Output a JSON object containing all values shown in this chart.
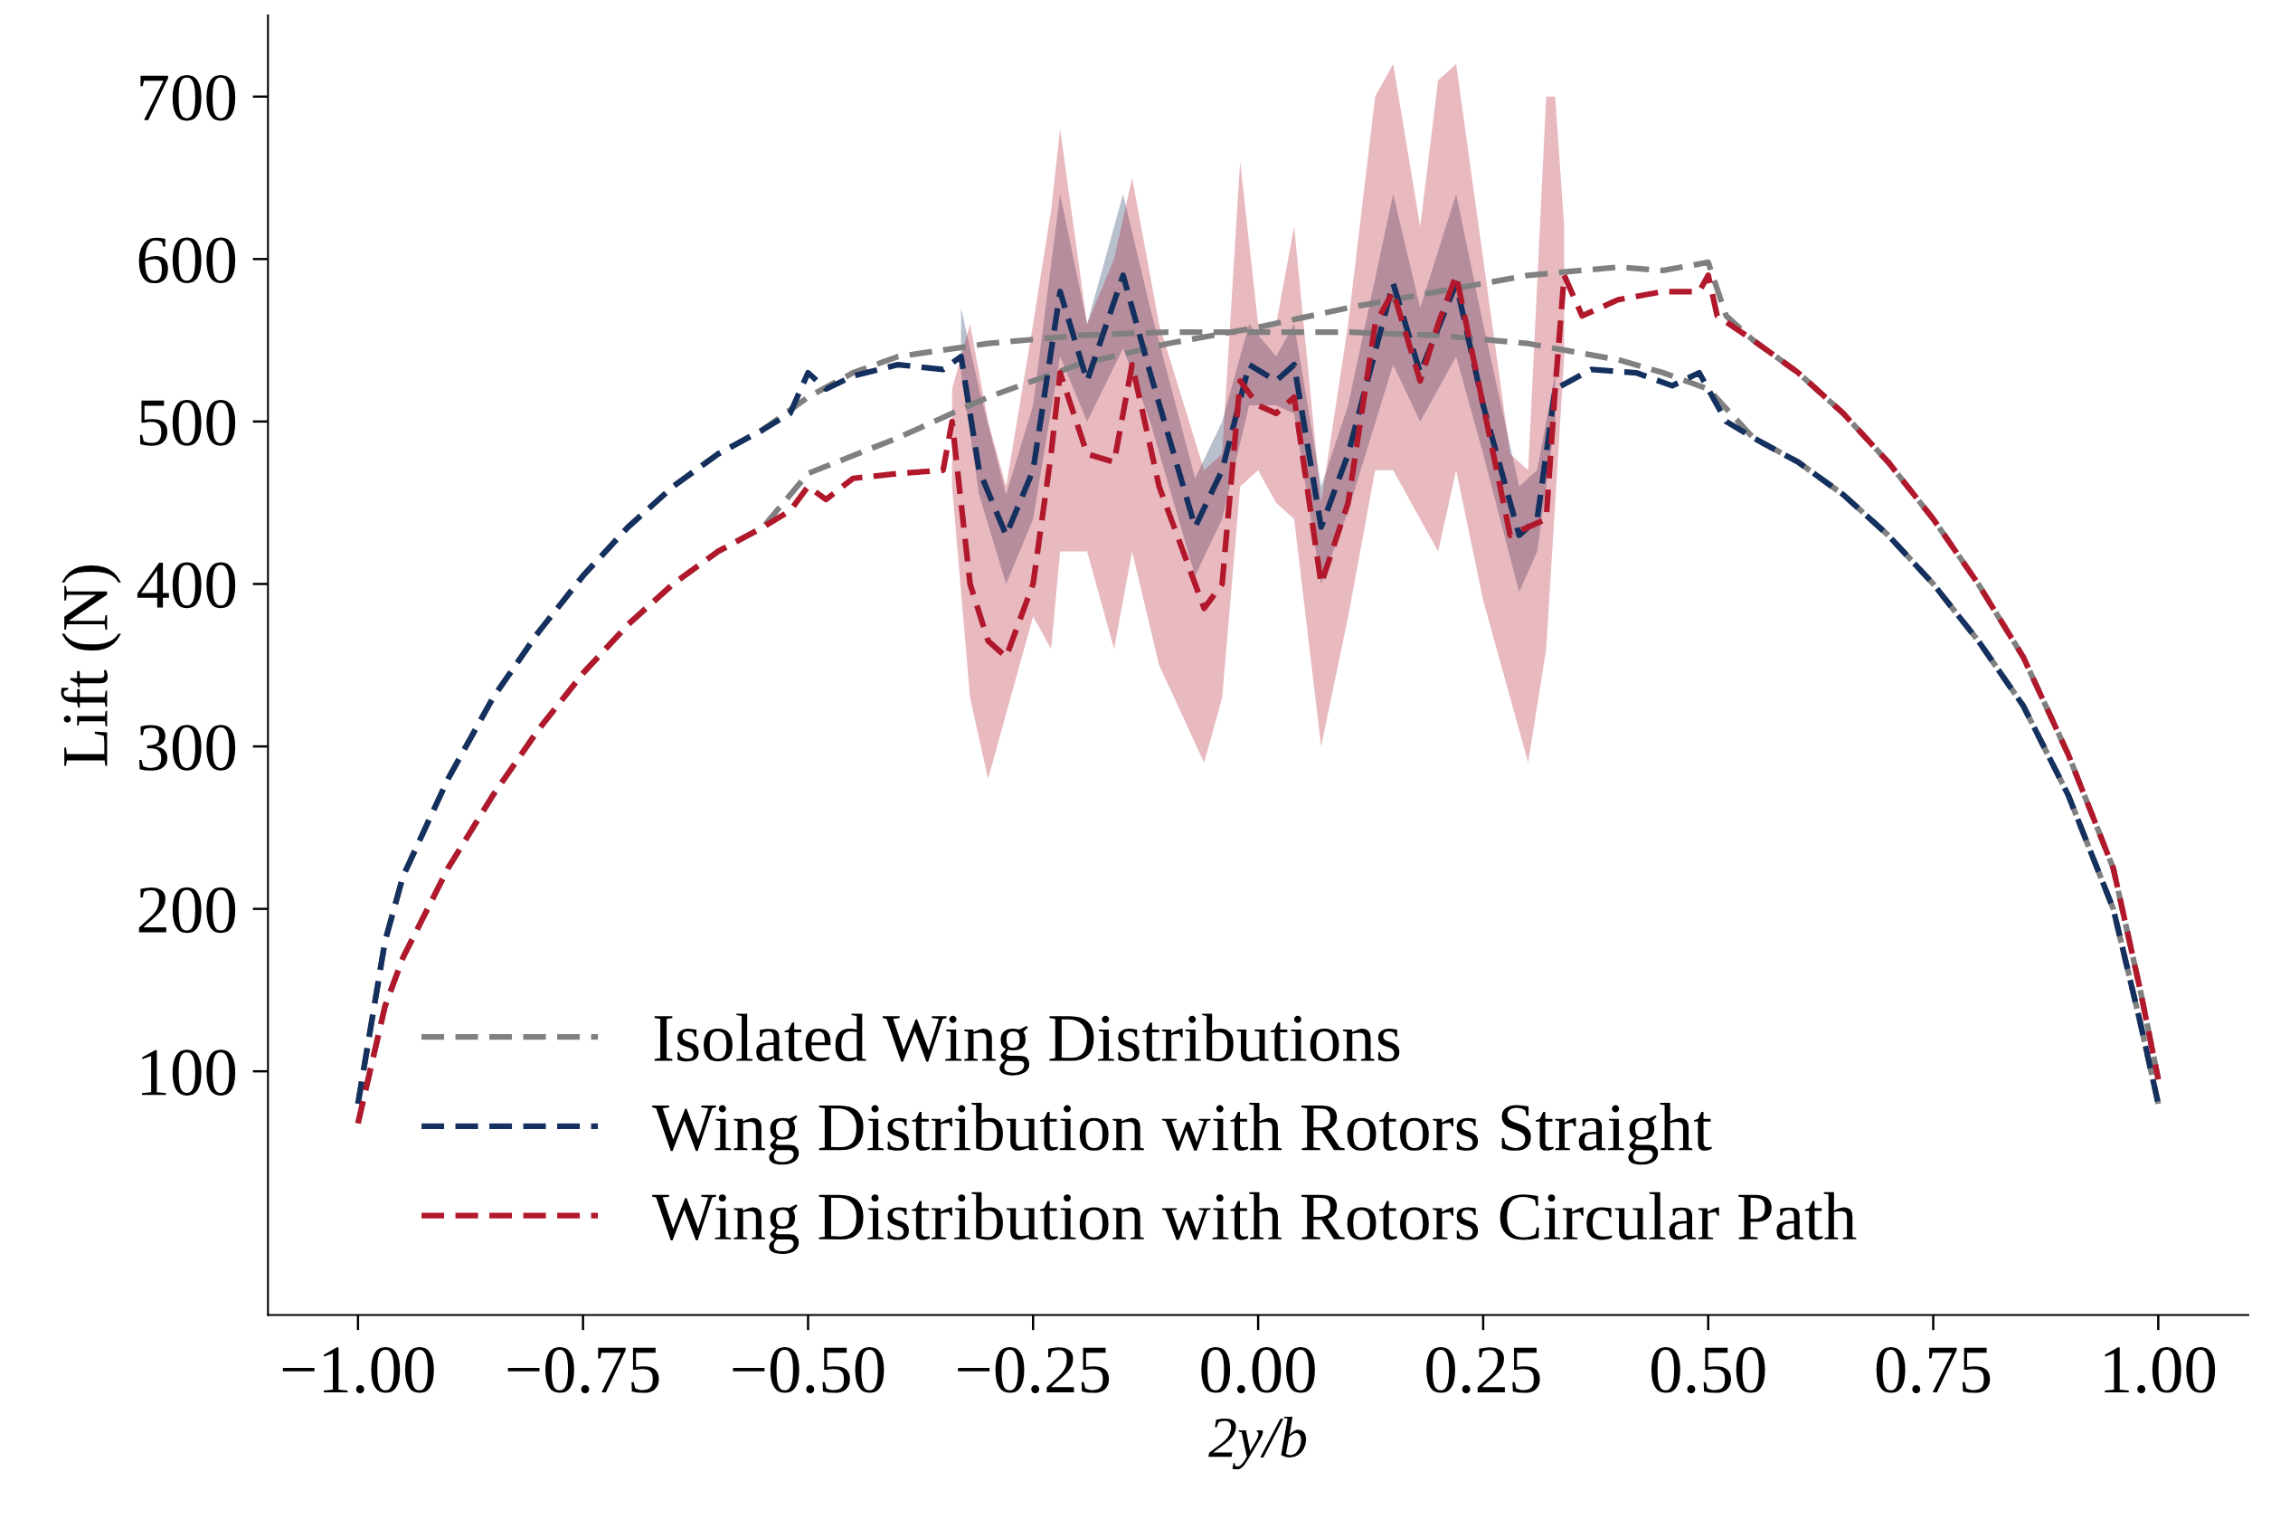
{
  "chart_data": {
    "type": "line",
    "xlabel": "2y/b",
    "ylabel": "Lift (N)",
    "xlim": [
      -1.1,
      1.1
    ],
    "ylim": [
      -50,
      750
    ],
    "xticks": [
      {
        "value": -1.0,
        "label": "−1.00"
      },
      {
        "value": -0.75,
        "label": "−0.75"
      },
      {
        "value": -0.5,
        "label": "−0.50"
      },
      {
        "value": -0.25,
        "label": "−0.25"
      },
      {
        "value": 0.0,
        "label": "0.00"
      },
      {
        "value": 0.25,
        "label": "0.25"
      },
      {
        "value": 0.5,
        "label": "0.50"
      },
      {
        "value": 0.75,
        "label": "0.75"
      },
      {
        "value": 1.0,
        "label": "1.00"
      }
    ],
    "yticks": [
      100,
      200,
      300,
      400,
      500,
      600,
      700
    ],
    "grid": false,
    "legend": "bottom",
    "line_style": "dashed",
    "marker": "none",
    "series": [
      {
        "name": "Isolated Wing Distributions",
        "color": "#808080",
        "x": [
          -1.0,
          -0.97,
          -0.95,
          -0.9,
          -0.85,
          -0.8,
          -0.75,
          -0.7,
          -0.65,
          -0.6,
          -0.55,
          -0.5,
          -0.45,
          -0.4,
          -0.3,
          -0.2,
          -0.1,
          0.0,
          0.1,
          0.2,
          0.3,
          0.4,
          0.45,
          0.5,
          0.55,
          0.6,
          0.65,
          0.7,
          0.75,
          0.8,
          0.85,
          0.9,
          0.95,
          0.98,
          1.0
        ],
        "values": [
          80,
          180,
          220,
          280,
          330,
          370,
          405,
          435,
          460,
          480,
          495,
          515,
          530,
          540,
          548,
          553,
          555,
          555,
          555,
          553,
          548,
          538,
          530,
          520,
          490,
          475,
          455,
          430,
          400,
          365,
          325,
          270,
          200,
          130,
          80
        ]
      },
      {
        "color": "#808080",
        "x": [
          -1.0,
          -0.97,
          -0.95,
          -0.9,
          -0.85,
          -0.8,
          -0.75,
          -0.7,
          -0.65,
          -0.6,
          -0.55,
          -0.5,
          -0.4,
          -0.3,
          -0.2,
          -0.1,
          0.0,
          0.1,
          0.2,
          0.3,
          0.4,
          0.45,
          0.5,
          0.52,
          0.55,
          0.6,
          0.65,
          0.7,
          0.75,
          0.8,
          0.85,
          0.9,
          0.95,
          0.98,
          1.0
        ],
        "values": [
          68,
          140,
          170,
          225,
          270,
          310,
          345,
          375,
          400,
          420,
          435,
          468,
          490,
          515,
          535,
          548,
          558,
          570,
          580,
          590,
          595,
          593,
          598,
          565,
          550,
          530,
          505,
          475,
          440,
          400,
          355,
          295,
          225,
          150,
          95
        ]
      },
      {
        "name": "Wing Distribution with Rotors Straight",
        "color": "#14305e",
        "x": [
          -1.0,
          -0.97,
          -0.95,
          -0.9,
          -0.85,
          -0.8,
          -0.75,
          -0.7,
          -0.65,
          -0.6,
          -0.55,
          -0.52,
          -0.5,
          -0.48,
          -0.45,
          -0.4,
          -0.35,
          -0.33,
          -0.31,
          -0.28,
          -0.25,
          -0.22,
          -0.19,
          -0.15,
          -0.12,
          -0.07,
          -0.04,
          -0.01,
          0.02,
          0.04,
          0.07,
          0.1,
          0.15,
          0.18,
          0.22,
          0.25,
          0.29,
          0.31,
          0.33,
          0.37,
          0.42,
          0.46,
          0.49,
          0.52,
          0.55,
          0.6,
          0.65,
          0.7,
          0.75,
          0.8,
          0.85,
          0.9,
          0.95,
          0.98,
          1.0
        ],
        "values": [
          80,
          180,
          220,
          280,
          330,
          370,
          405,
          435,
          460,
          480,
          495,
          505,
          530,
          520,
          528,
          535,
          532,
          540,
          470,
          430,
          470,
          580,
          525,
          590,
          530,
          435,
          470,
          535,
          525,
          535,
          435,
          480,
          585,
          530,
          585,
          510,
          430,
          440,
          520,
          532,
          530,
          522,
          530,
          500,
          490,
          475,
          455,
          430,
          400,
          365,
          325,
          270,
          200,
          130,
          80
        ],
        "lower": [
          null,
          null,
          null,
          null,
          null,
          null,
          null,
          null,
          null,
          null,
          null,
          null,
          null,
          null,
          null,
          null,
          null,
          530,
          455,
          400,
          440,
          540,
          500,
          545,
          500,
          405,
          440,
          510,
          510,
          505,
          400,
          445,
          535,
          500,
          540,
          480,
          395,
          420,
          500,
          null,
          null,
          null,
          null,
          null,
          null,
          null,
          null,
          null,
          null,
          null,
          null,
          null,
          null,
          null,
          null
        ],
        "upper": [
          null,
          null,
          null,
          null,
          null,
          null,
          null,
          null,
          null,
          null,
          null,
          null,
          null,
          null,
          null,
          null,
          null,
          570,
          520,
          455,
          510,
          640,
          560,
          640,
          570,
          465,
          500,
          560,
          540,
          560,
          460,
          510,
          640,
          570,
          640,
          560,
          460,
          470,
          530,
          null,
          null,
          null,
          null,
          null,
          null,
          null,
          null,
          null,
          null,
          null,
          null,
          null,
          null,
          null,
          null
        ]
      },
      {
        "name": "Wing Distribution with Rotors Circular Path",
        "color": "#b2182b",
        "x": [
          -1.0,
          -0.97,
          -0.95,
          -0.9,
          -0.85,
          -0.8,
          -0.75,
          -0.7,
          -0.65,
          -0.6,
          -0.55,
          -0.52,
          -0.5,
          -0.48,
          -0.45,
          -0.4,
          -0.35,
          -0.34,
          -0.32,
          -0.3,
          -0.28,
          -0.25,
          -0.23,
          -0.22,
          -0.19,
          -0.16,
          -0.14,
          -0.11,
          -0.06,
          -0.04,
          -0.02,
          0.0,
          0.02,
          0.04,
          0.07,
          0.1,
          0.13,
          0.15,
          0.18,
          0.2,
          0.22,
          0.25,
          0.28,
          0.3,
          0.32,
          0.33,
          0.34,
          0.36,
          0.4,
          0.45,
          0.49,
          0.5,
          0.51,
          0.55,
          0.6,
          0.65,
          0.7,
          0.75,
          0.8,
          0.85,
          0.9,
          0.95,
          0.98,
          1.0
        ],
        "values": [
          68,
          140,
          170,
          225,
          270,
          310,
          345,
          375,
          400,
          420,
          435,
          445,
          460,
          452,
          465,
          468,
          470,
          500,
          400,
          365,
          355,
          400,
          480,
          530,
          480,
          475,
          535,
          460,
          385,
          400,
          525,
          510,
          505,
          515,
          400,
          450,
          560,
          580,
          525,
          560,
          590,
          510,
          430,
          435,
          440,
          520,
          590,
          565,
          575,
          580,
          580,
          590,
          565,
          550,
          530,
          505,
          475,
          440,
          400,
          355,
          295,
          225,
          150,
          95
        ],
        "lower": [
          null,
          null,
          null,
          null,
          null,
          null,
          null,
          null,
          null,
          null,
          null,
          null,
          null,
          null,
          null,
          null,
          null,
          460,
          330,
          280,
          320,
          380,
          360,
          420,
          420,
          360,
          420,
          350,
          290,
          330,
          460,
          470,
          450,
          440,
          300,
          380,
          470,
          470,
          440,
          420,
          470,
          390,
          330,
          290,
          360,
          450,
          540,
          null,
          null,
          null,
          null,
          null,
          null,
          null,
          null,
          null,
          null,
          null,
          null,
          null,
          null,
          null,
          null,
          null
        ],
        "upper": [
          null,
          null,
          null,
          null,
          null,
          null,
          null,
          null,
          null,
          null,
          null,
          null,
          null,
          null,
          null,
          null,
          null,
          520,
          560,
          500,
          460,
          560,
          630,
          680,
          560,
          600,
          650,
          560,
          470,
          480,
          660,
          560,
          560,
          620,
          450,
          560,
          700,
          720,
          620,
          710,
          720,
          600,
          480,
          470,
          700,
          700,
          620,
          null,
          null,
          null,
          null,
          null,
          null,
          null,
          null,
          null,
          null,
          null,
          null,
          null,
          null,
          null,
          null,
          null
        ]
      }
    ]
  }
}
